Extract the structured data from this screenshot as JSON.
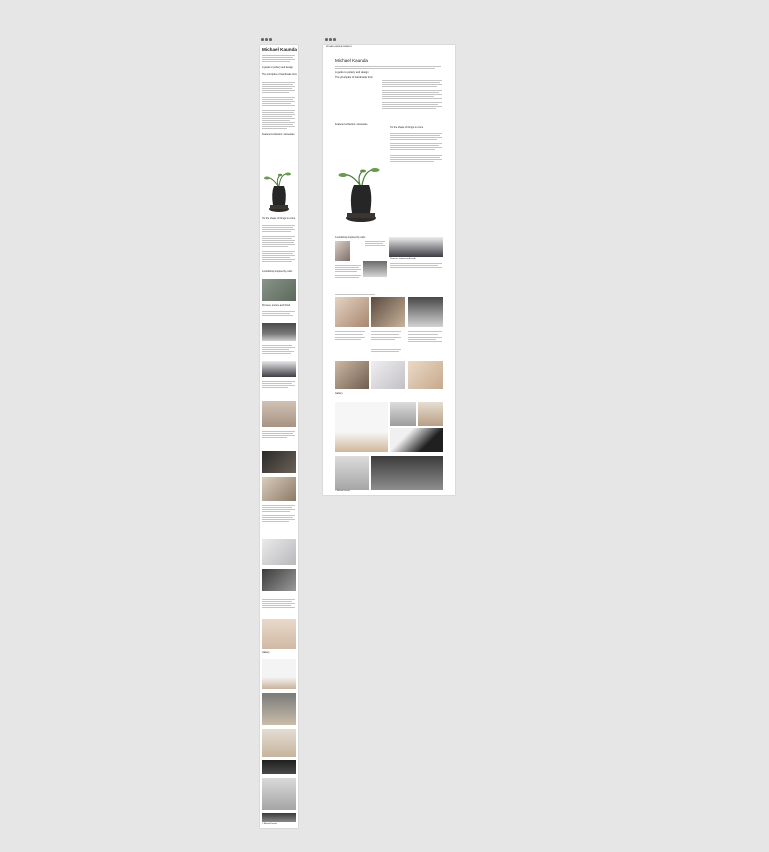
{
  "canvas": {
    "frames": [
      {
        "name": "Mobile",
        "menu_icon": "more-horizontal-icon"
      },
      {
        "name": "Desktop",
        "menu_icon": "more-horizontal-icon"
      }
    ]
  },
  "site": {
    "title": "Michael Kaunda",
    "tiny_header": "MICHAEL KAUNDA CERAMICS",
    "footer": "© Michael Kaunda"
  },
  "sections": {
    "intro": "A guide to pottery and design",
    "about": "The principles of handmade form",
    "featured": "Featured collection: stoneware",
    "featured_side": "On the shape of things to come",
    "workshop": "A workshop inspired by calm",
    "process": "Process, texture and finish",
    "gallery": "Gallery"
  },
  "palette": {
    "page": "#ffffff",
    "canvas": "#e6e6e6",
    "text": "#222222"
  }
}
